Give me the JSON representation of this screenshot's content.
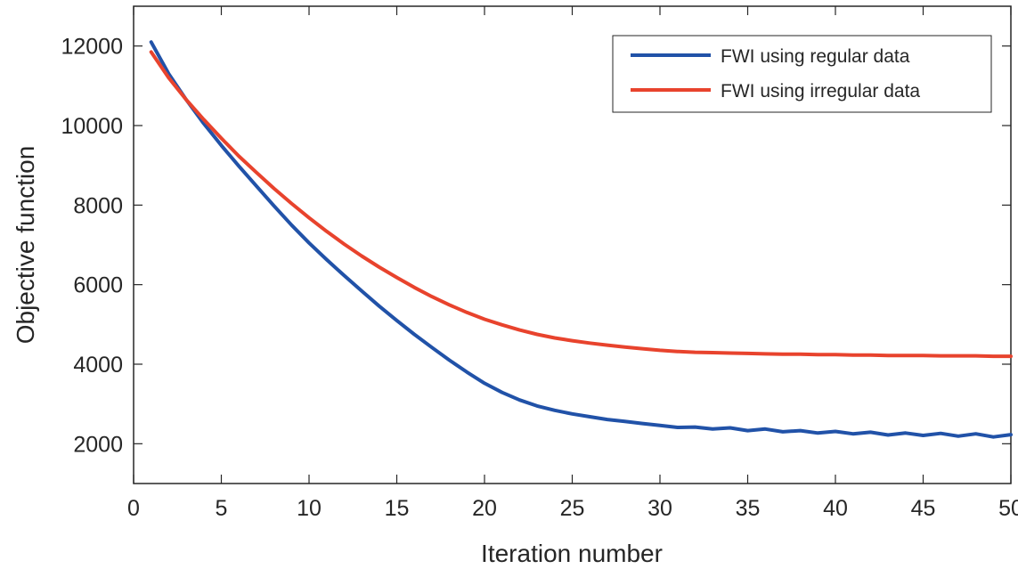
{
  "chart_data": {
    "type": "line",
    "title": "",
    "xlabel": "Iteration number",
    "ylabel": "Objective function",
    "xlim": [
      0,
      50
    ],
    "ylim": [
      1000,
      13000
    ],
    "xticks": [
      0,
      5,
      10,
      15,
      20,
      25,
      30,
      35,
      40,
      45,
      50
    ],
    "yticks": [
      2000,
      4000,
      6000,
      8000,
      10000,
      12000
    ],
    "grid": false,
    "legend_position": "top-right",
    "x": [
      1,
      2,
      3,
      4,
      5,
      6,
      7,
      8,
      9,
      10,
      11,
      12,
      13,
      14,
      15,
      16,
      17,
      18,
      19,
      20,
      21,
      22,
      23,
      24,
      25,
      26,
      27,
      28,
      29,
      30,
      31,
      32,
      33,
      34,
      35,
      36,
      37,
      38,
      39,
      40,
      41,
      42,
      43,
      44,
      45,
      46,
      47,
      48,
      49,
      50
    ],
    "series": [
      {
        "name": "FWI using regular data",
        "color": "#2152a8",
        "values": [
          12100,
          11300,
          10650,
          10050,
          9500,
          8980,
          8480,
          7980,
          7500,
          7050,
          6630,
          6230,
          5840,
          5460,
          5100,
          4750,
          4420,
          4100,
          3800,
          3520,
          3290,
          3100,
          2950,
          2840,
          2750,
          2680,
          2610,
          2560,
          2510,
          2460,
          2410,
          2420,
          2370,
          2400,
          2330,
          2370,
          2300,
          2330,
          2270,
          2310,
          2250,
          2290,
          2220,
          2270,
          2210,
          2260,
          2190,
          2250,
          2170,
          2230
        ]
      },
      {
        "name": "FWI using irregular data",
        "color": "#e8432d",
        "values": [
          11850,
          11200,
          10650,
          10150,
          9680,
          9230,
          8820,
          8420,
          8040,
          7680,
          7340,
          7020,
          6720,
          6440,
          6180,
          5930,
          5700,
          5490,
          5300,
          5130,
          4990,
          4860,
          4750,
          4660,
          4590,
          4530,
          4480,
          4430,
          4390,
          4350,
          4320,
          4300,
          4290,
          4280,
          4270,
          4260,
          4250,
          4250,
          4240,
          4240,
          4230,
          4230,
          4220,
          4220,
          4220,
          4210,
          4210,
          4210,
          4200,
          4200
        ]
      }
    ]
  }
}
